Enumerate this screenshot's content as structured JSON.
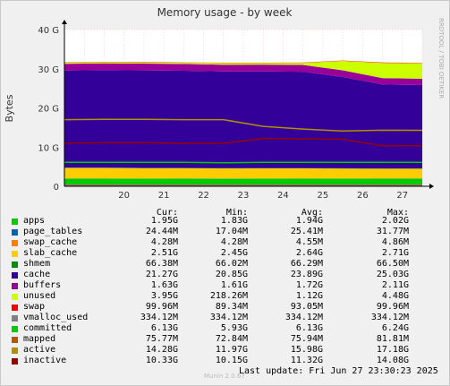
{
  "chart_data": {
    "type": "area",
    "title": "Memory usage - by week",
    "ylabel": "Bytes",
    "xlabel": "",
    "y_unit": "bytes",
    "ylim": [
      0,
      42949672960
    ],
    "yticks": [
      {
        "value": 0,
        "label": "0"
      },
      {
        "value": 10737418240,
        "label": "10 G"
      },
      {
        "value": 21474836480,
        "label": "20 G"
      },
      {
        "value": 32212254720,
        "label": "30 G"
      },
      {
        "value": 42949672960,
        "label": "40 G"
      }
    ],
    "x_range": [
      "2025-06-19",
      "2025-06-28"
    ],
    "xticks": [
      "20",
      "21",
      "22",
      "23",
      "24",
      "25",
      "26",
      "27"
    ],
    "grid": true,
    "watermark": "RRDTOOL / TOBI OETIKER",
    "footer_brand": "Munin 2.0.67",
    "last_update": "Last update: Fri Jun 27 23:30:23 2025",
    "column_headers": [
      "Cur:",
      "Min:",
      "Avg:",
      "Max:"
    ],
    "x_days": [
      "2025-06-19",
      "2025-06-20",
      "2025-06-21",
      "2025-06-22",
      "2025-06-23",
      "2025-06-24",
      "2025-06-25",
      "2025-06-26",
      "2025-06-27",
      "2025-06-28"
    ],
    "series": [
      {
        "name": "apps",
        "color": "#00cc00",
        "stacked": true,
        "values_gb": [
          1.95,
          1.95,
          1.94,
          1.95,
          1.93,
          1.94,
          1.95,
          1.94,
          1.95,
          1.95
        ],
        "cur": "1.95G",
        "min": "1.83G",
        "avg": "1.94G",
        "max": "2.02G"
      },
      {
        "name": "page_tables",
        "color": "#0066b3",
        "stacked": true,
        "values_gb": [
          0.025,
          0.025,
          0.025,
          0.025,
          0.025,
          0.025,
          0.025,
          0.025,
          0.024,
          0.024
        ],
        "cur": "24.44M",
        "min": "17.04M",
        "avg": "25.41M",
        "max": "31.77M"
      },
      {
        "name": "swap_cache",
        "color": "#ff8000",
        "stacked": true,
        "values_gb": [
          0.0045,
          0.0045,
          0.0045,
          0.0045,
          0.0045,
          0.0045,
          0.0045,
          0.0045,
          0.0043,
          0.0043
        ],
        "cur": "4.28M",
        "min": "4.28M",
        "avg": "4.55M",
        "max": "4.86M"
      },
      {
        "name": "slab_cache",
        "color": "#ffcc00",
        "stacked": true,
        "values_gb": [
          2.7,
          2.7,
          2.65,
          2.65,
          2.6,
          2.6,
          2.6,
          2.55,
          2.51,
          2.51
        ],
        "cur": "2.51G",
        "min": "2.45G",
        "avg": "2.64G",
        "max": "2.71G"
      },
      {
        "name": "shmem",
        "color": "#330099",
        "stacked": true,
        "values_gb": [
          0.066,
          0.066,
          0.066,
          0.066,
          0.066,
          0.066,
          0.066,
          0.066,
          0.066,
          0.066
        ],
        "cur": "66.38M",
        "min": "66.02M",
        "avg": "66.29M",
        "max": "66.50M"
      },
      {
        "name": "cache",
        "color": "#990099",
        "stacked": true,
        "values_gb": [
          24.8,
          24.9,
          24.9,
          24.8,
          24.7,
          24.7,
          24.6,
          23.3,
          21.4,
          21.27
        ],
        "cur": "21.27G",
        "min": "20.85G",
        "avg": "23.89G",
        "max": "25.03G"
      },
      {
        "name": "buffers",
        "color": "#ccff00",
        "stacked": true,
        "values_gb": [
          1.72,
          1.72,
          1.72,
          1.72,
          1.72,
          1.72,
          1.72,
          1.72,
          1.63,
          1.63
        ],
        "cur": "1.63G",
        "min": "1.61G",
        "avg": "1.72G",
        "max": "2.11G"
      },
      {
        "name": "unused",
        "color": "#ff0000",
        "stacked": true,
        "values_gb": [
          0.3,
          0.3,
          0.3,
          0.3,
          0.4,
          0.4,
          0.5,
          2.4,
          3.9,
          3.95
        ],
        "cur": "3.95G",
        "min": "218.26M",
        "avg": "1.12G",
        "max": "4.48G"
      },
      {
        "name": "swap",
        "color": "#808080",
        "stacked": true,
        "values_gb": [
          0.093,
          0.093,
          0.093,
          0.093,
          0.093,
          0.093,
          0.093,
          0.093,
          0.1,
          0.1
        ],
        "cur": "99.96M",
        "min": "89.34M",
        "avg": "93.05M",
        "max": "99.96M"
      },
      {
        "name": "vmalloc_used",
        "color": "#008f00",
        "stacked": false,
        "values_gb": [
          0.334,
          0.334,
          0.334,
          0.334,
          0.334,
          0.334,
          0.334,
          0.334,
          0.334,
          0.334
        ],
        "cur": "334.12M",
        "min": "334.12M",
        "avg": "334.12M",
        "max": "334.12M"
      },
      {
        "name": "committed",
        "color": "#00487d",
        "stacked": false,
        "values_gb": [
          6.1,
          6.1,
          6.1,
          6.1,
          6.0,
          6.1,
          6.1,
          6.1,
          6.13,
          6.13
        ],
        "cur": "6.13G",
        "min": "5.93G",
        "avg": "6.13G",
        "max": "6.24G"
      },
      {
        "name": "mapped",
        "color": "#b35a00",
        "stacked": false,
        "values_gb": [
          0.076,
          0.076,
          0.076,
          0.076,
          0.076,
          0.076,
          0.076,
          0.076,
          0.076,
          0.076
        ],
        "cur": "75.77M",
        "min": "72.84M",
        "avg": "75.94M",
        "max": "81.81M"
      },
      {
        "name": "active",
        "color": "#b38f00",
        "stacked": false,
        "values_gb": [
          17.0,
          17.1,
          17.1,
          17.0,
          17.0,
          15.3,
          14.6,
          14.1,
          14.3,
          14.28
        ],
        "cur": "14.28G",
        "min": "11.97G",
        "avg": "15.98G",
        "max": "17.18G"
      },
      {
        "name": "inactive",
        "color": "#6b006b",
        "stacked": false,
        "values_gb": [
          11.0,
          11.1,
          11.1,
          11.0,
          11.0,
          12.2,
          12.1,
          12.0,
          10.3,
          10.33
        ],
        "cur": "10.33G",
        "min": "10.15G",
        "avg": "11.32G",
        "max": "14.08G"
      }
    ],
    "legend_colors_override": {
      "unused": "#ccff00",
      "buffers": "#990099",
      "cache": "#330099",
      "shmem": "#008f00",
      "swap": "#ff0000",
      "vmalloc_used": "#808080",
      "committed": "#00cc00",
      "mapped": "#b35a00",
      "active": "#b38f00",
      "inactive": "#990000"
    }
  }
}
